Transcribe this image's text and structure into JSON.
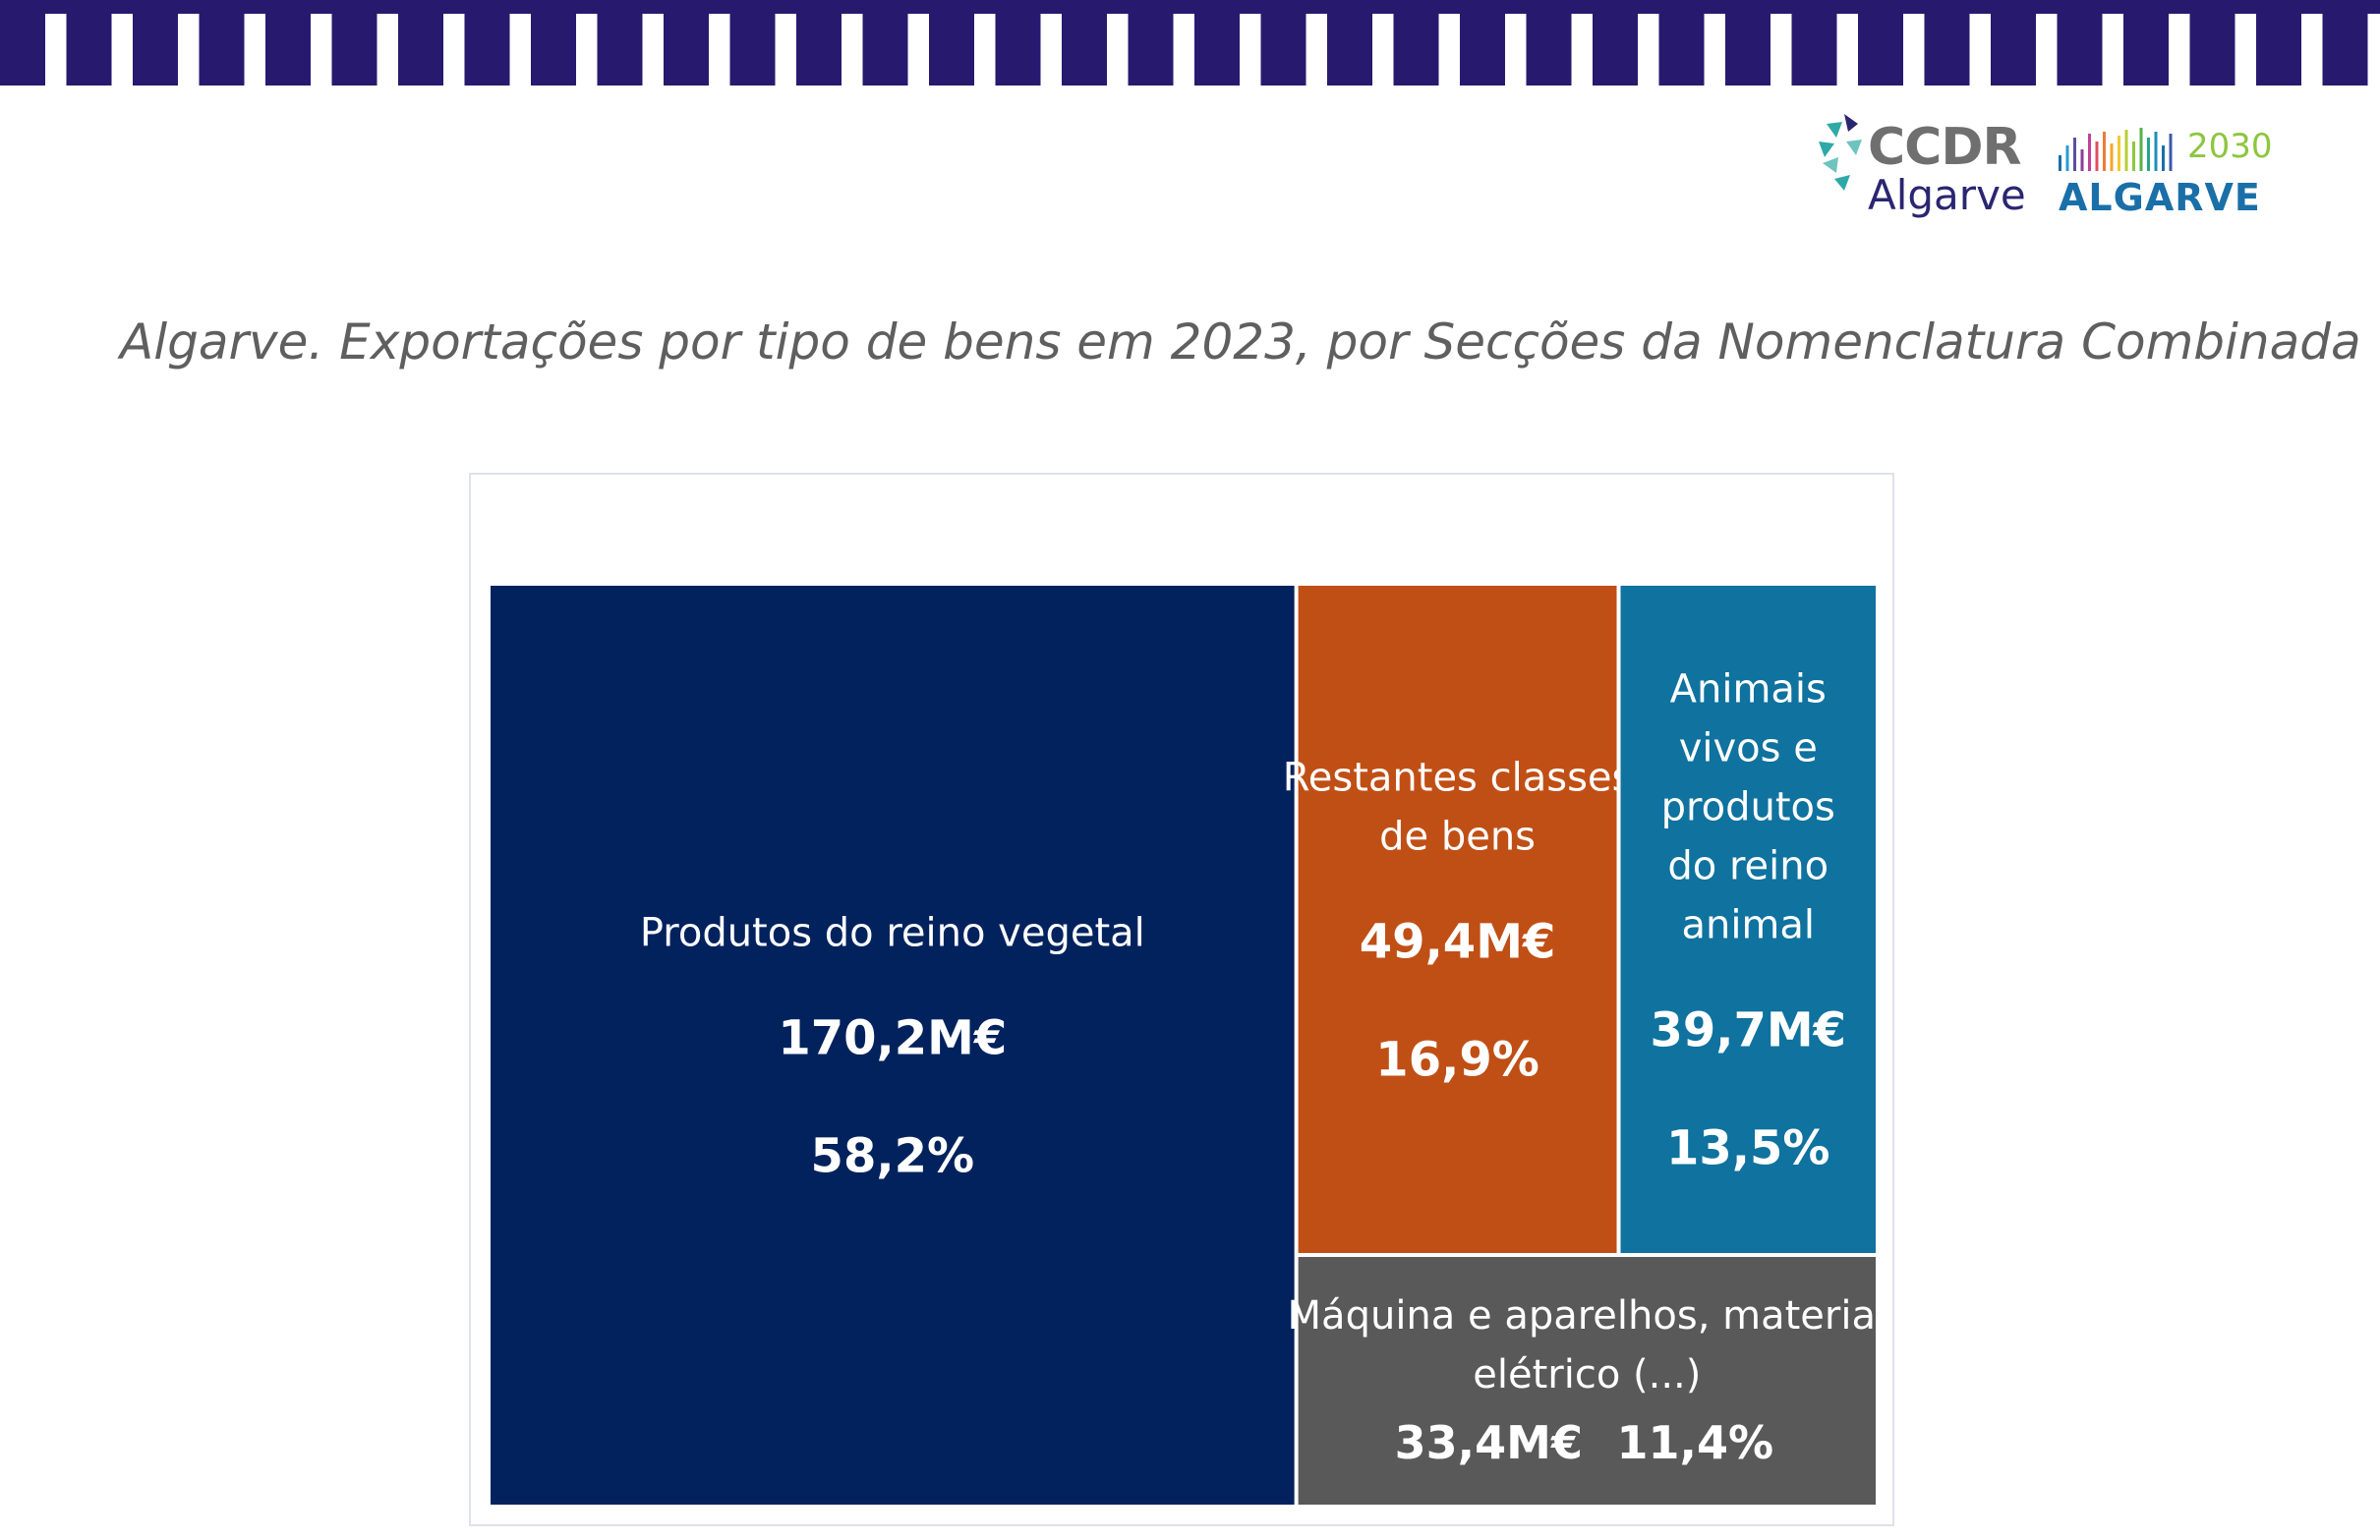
{
  "header": {
    "logo_ccdr_text": "CCDR",
    "logo_ccdr_region": "Algarve",
    "logo_program_year": "2030",
    "logo_program_name": "ALGARVE"
  },
  "title": "Algarve. Exportações por tipo de bens em 2023, por Secções da Nomenclatura Combinada",
  "colors": {
    "band": "#271a6e",
    "vegetal": "#02225e",
    "restantes": "#c04f16",
    "animal": "#0f729f",
    "maquinas": "#595959"
  },
  "chart_data": {
    "type": "treemap",
    "title": "Algarve. Exportações por tipo de bens em 2023, por Secções da Nomenclatura Combinada",
    "unit": "M€",
    "items": [
      {
        "label": "Produtos do reino vegetal",
        "value": 170.2,
        "value_label": "170,2M€",
        "share": 58.2,
        "share_label": "58,2%",
        "color": "#02225e"
      },
      {
        "label": "Restantes classes de bens",
        "value": 49.4,
        "value_label": "49,4M€",
        "share": 16.9,
        "share_label": "16,9%",
        "color": "#c04f16"
      },
      {
        "label": "Animais vivos e produtos do reino animal",
        "value": 39.7,
        "value_label": "39,7M€",
        "share": 13.5,
        "share_label": "13,5%",
        "color": "#0f729f"
      },
      {
        "label": "Máquina e aparelhos, material elétrico (...)",
        "value": 33.4,
        "value_label": "33,4M€",
        "share": 11.4,
        "share_label": "11,4%",
        "color": "#595959"
      }
    ]
  }
}
